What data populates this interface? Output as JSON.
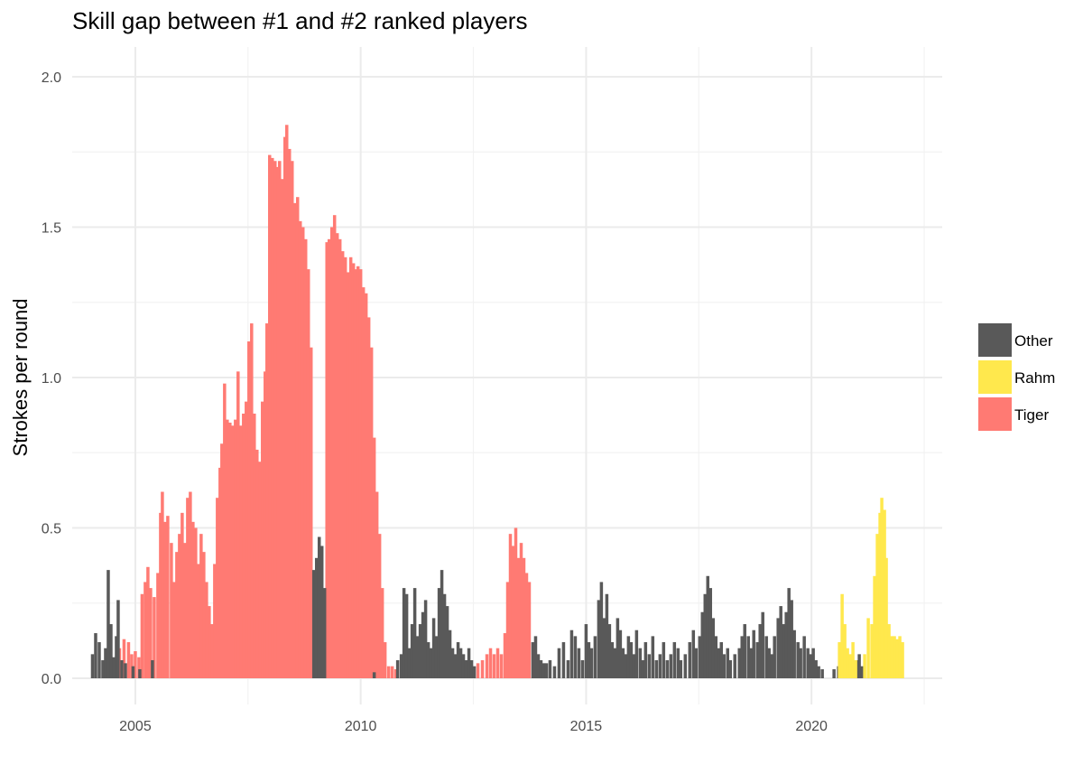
{
  "chart_data": {
    "type": "bar",
    "title": "Skill gap between #1 and #2 ranked players",
    "xlabel": "",
    "ylabel": "Strokes per round",
    "xlim": [
      2003.6,
      2022.9
    ],
    "ylim": [
      0,
      2.0
    ],
    "x_ticks": [
      2005,
      2010,
      2015,
      2020
    ],
    "x_tick_labels": [
      "2005",
      "2010",
      "2015",
      "2020"
    ],
    "y_ticks": [
      0,
      0.5,
      1.0,
      1.5,
      2.0
    ],
    "y_tick_labels": [
      "0.0",
      "0.5",
      "1.0",
      "1.5",
      "2.0"
    ],
    "grid": true,
    "legend_position": "right",
    "legend": [
      {
        "name": "Other",
        "color": "#595959"
      },
      {
        "name": "Rahm",
        "color": "#ffe84d"
      },
      {
        "name": "Tiger",
        "color": "#ff7a73"
      }
    ],
    "series": [
      {
        "name": "Tiger",
        "color": "#ff7a73",
        "points": [
          [
            2004.65,
            0.1
          ],
          [
            2004.75,
            0.13
          ],
          [
            2004.85,
            0.12
          ],
          [
            2004.92,
            0.08
          ],
          [
            2005.0,
            0.09
          ],
          [
            2005.08,
            0.07
          ],
          [
            2005.15,
            0.28
          ],
          [
            2005.22,
            0.32
          ],
          [
            2005.28,
            0.37
          ],
          [
            2005.34,
            0.3
          ],
          [
            2005.42,
            0.27
          ],
          [
            2005.5,
            0.35
          ],
          [
            2005.56,
            0.55
          ],
          [
            2005.6,
            0.62
          ],
          [
            2005.66,
            0.52
          ],
          [
            2005.72,
            0.54
          ],
          [
            2005.8,
            0.45
          ],
          [
            2005.86,
            0.32
          ],
          [
            2005.92,
            0.42
          ],
          [
            2005.98,
            0.48
          ],
          [
            2006.04,
            0.55
          ],
          [
            2006.1,
            0.45
          ],
          [
            2006.16,
            0.6
          ],
          [
            2006.22,
            0.62
          ],
          [
            2006.28,
            0.52
          ],
          [
            2006.34,
            0.5
          ],
          [
            2006.4,
            0.38
          ],
          [
            2006.46,
            0.48
          ],
          [
            2006.52,
            0.42
          ],
          [
            2006.58,
            0.32
          ],
          [
            2006.64,
            0.24
          ],
          [
            2006.7,
            0.18
          ],
          [
            2006.76,
            0.38
          ],
          [
            2006.82,
            0.6
          ],
          [
            2006.88,
            0.7
          ],
          [
            2006.92,
            0.78
          ],
          [
            2006.98,
            0.98
          ],
          [
            2007.04,
            0.86
          ],
          [
            2007.1,
            0.85
          ],
          [
            2007.16,
            0.84
          ],
          [
            2007.22,
            0.86
          ],
          [
            2007.28,
            1.02
          ],
          [
            2007.34,
            0.84
          ],
          [
            2007.4,
            0.88
          ],
          [
            2007.46,
            0.92
          ],
          [
            2007.52,
            1.12
          ],
          [
            2007.58,
            1.18
          ],
          [
            2007.64,
            0.88
          ],
          [
            2007.7,
            0.76
          ],
          [
            2007.76,
            0.72
          ],
          [
            2007.82,
            0.92
          ],
          [
            2007.88,
            1.02
          ],
          [
            2007.92,
            1.18
          ],
          [
            2007.98,
            1.74
          ],
          [
            2008.04,
            1.73
          ],
          [
            2008.1,
            1.72
          ],
          [
            2008.16,
            1.7
          ],
          [
            2008.2,
            1.72
          ],
          [
            2008.26,
            1.66
          ],
          [
            2008.32,
            1.8
          ],
          [
            2008.36,
            1.84
          ],
          [
            2008.42,
            1.76
          ],
          [
            2008.48,
            1.72
          ],
          [
            2008.54,
            1.58
          ],
          [
            2008.6,
            1.6
          ],
          [
            2008.66,
            1.52
          ],
          [
            2008.72,
            1.5
          ],
          [
            2008.78,
            1.46
          ],
          [
            2008.84,
            1.36
          ],
          [
            2008.9,
            1.1
          ],
          [
            2009.25,
            1.45
          ],
          [
            2009.3,
            1.46
          ],
          [
            2009.36,
            1.5
          ],
          [
            2009.42,
            1.54
          ],
          [
            2009.48,
            1.48
          ],
          [
            2009.54,
            1.46
          ],
          [
            2009.6,
            1.42
          ],
          [
            2009.66,
            1.4
          ],
          [
            2009.72,
            1.35
          ],
          [
            2009.78,
            1.4
          ],
          [
            2009.84,
            1.38
          ],
          [
            2009.88,
            1.36
          ],
          [
            2009.94,
            1.37
          ],
          [
            2010.0,
            1.36
          ],
          [
            2010.06,
            1.3
          ],
          [
            2010.12,
            1.28
          ],
          [
            2010.18,
            1.2
          ],
          [
            2010.24,
            1.1
          ],
          [
            2010.3,
            0.8
          ],
          [
            2010.36,
            0.62
          ],
          [
            2010.42,
            0.48
          ],
          [
            2010.48,
            0.3
          ],
          [
            2010.54,
            0.12
          ],
          [
            2010.62,
            0.04
          ],
          [
            2010.7,
            0.04
          ],
          [
            2010.78,
            0.03
          ],
          [
            2012.6,
            0.05
          ],
          [
            2012.7,
            0.06
          ],
          [
            2012.8,
            0.08
          ],
          [
            2012.88,
            0.1
          ],
          [
            2012.96,
            0.08
          ],
          [
            2013.04,
            0.1
          ],
          [
            2013.12,
            0.08
          ],
          [
            2013.2,
            0.15
          ],
          [
            2013.26,
            0.32
          ],
          [
            2013.32,
            0.48
          ],
          [
            2013.38,
            0.44
          ],
          [
            2013.44,
            0.5
          ],
          [
            2013.5,
            0.4
          ],
          [
            2013.56,
            0.45
          ],
          [
            2013.62,
            0.4
          ],
          [
            2013.68,
            0.35
          ],
          [
            2013.74,
            0.32
          ]
        ]
      },
      {
        "name": "Other",
        "color": "#595959",
        "points": [
          [
            2004.05,
            0.08
          ],
          [
            2004.12,
            0.15
          ],
          [
            2004.2,
            0.12
          ],
          [
            2004.28,
            0.06
          ],
          [
            2004.34,
            0.1
          ],
          [
            2004.4,
            0.36
          ],
          [
            2004.46,
            0.18
          ],
          [
            2004.52,
            0.07
          ],
          [
            2004.58,
            0.14
          ],
          [
            2004.62,
            0.26
          ],
          [
            2004.7,
            0.06
          ],
          [
            2004.78,
            0.05
          ],
          [
            2004.95,
            0.04
          ],
          [
            2005.1,
            0.03
          ],
          [
            2005.38,
            0.06
          ],
          [
            2008.96,
            0.36
          ],
          [
            2009.02,
            0.4
          ],
          [
            2009.08,
            0.47
          ],
          [
            2009.14,
            0.44
          ],
          [
            2009.2,
            0.3
          ],
          [
            2010.3,
            0.02
          ],
          [
            2010.82,
            0.06
          ],
          [
            2010.9,
            0.08
          ],
          [
            2010.96,
            0.3
          ],
          [
            2011.02,
            0.28
          ],
          [
            2011.08,
            0.1
          ],
          [
            2011.14,
            0.18
          ],
          [
            2011.2,
            0.3
          ],
          [
            2011.26,
            0.14
          ],
          [
            2011.32,
            0.18
          ],
          [
            2011.38,
            0.22
          ],
          [
            2011.44,
            0.26
          ],
          [
            2011.5,
            0.12
          ],
          [
            2011.56,
            0.1
          ],
          [
            2011.62,
            0.2
          ],
          [
            2011.68,
            0.14
          ],
          [
            2011.74,
            0.3
          ],
          [
            2011.8,
            0.36
          ],
          [
            2011.86,
            0.28
          ],
          [
            2011.92,
            0.24
          ],
          [
            2011.98,
            0.16
          ],
          [
            2012.04,
            0.1
          ],
          [
            2012.1,
            0.08
          ],
          [
            2012.16,
            0.12
          ],
          [
            2012.22,
            0.1
          ],
          [
            2012.28,
            0.08
          ],
          [
            2012.34,
            0.06
          ],
          [
            2012.4,
            0.1
          ],
          [
            2012.46,
            0.06
          ],
          [
            2012.52,
            0.04
          ],
          [
            2013.82,
            0.12
          ],
          [
            2013.88,
            0.14
          ],
          [
            2013.94,
            0.08
          ],
          [
            2014.0,
            0.06
          ],
          [
            2014.06,
            0.05
          ],
          [
            2014.12,
            0.05
          ],
          [
            2014.2,
            0.06
          ],
          [
            2014.3,
            0.04
          ],
          [
            2014.4,
            0.1
          ],
          [
            2014.5,
            0.12
          ],
          [
            2014.6,
            0.06
          ],
          [
            2014.68,
            0.16
          ],
          [
            2014.76,
            0.14
          ],
          [
            2014.84,
            0.1
          ],
          [
            2014.92,
            0.06
          ],
          [
            2015.0,
            0.18
          ],
          [
            2015.06,
            0.12
          ],
          [
            2015.12,
            0.1
          ],
          [
            2015.2,
            0.14
          ],
          [
            2015.28,
            0.26
          ],
          [
            2015.34,
            0.32
          ],
          [
            2015.4,
            0.2
          ],
          [
            2015.46,
            0.28
          ],
          [
            2015.52,
            0.18
          ],
          [
            2015.58,
            0.12
          ],
          [
            2015.64,
            0.1
          ],
          [
            2015.7,
            0.2
          ],
          [
            2015.76,
            0.16
          ],
          [
            2015.82,
            0.1
          ],
          [
            2015.88,
            0.08
          ],
          [
            2015.94,
            0.14
          ],
          [
            2016.0,
            0.12
          ],
          [
            2016.06,
            0.08
          ],
          [
            2016.12,
            0.16
          ],
          [
            2016.2,
            0.1
          ],
          [
            2016.26,
            0.06
          ],
          [
            2016.32,
            0.12
          ],
          [
            2016.4,
            0.08
          ],
          [
            2016.48,
            0.14
          ],
          [
            2016.56,
            0.06
          ],
          [
            2016.64,
            0.08
          ],
          [
            2016.72,
            0.12
          ],
          [
            2016.8,
            0.06
          ],
          [
            2016.88,
            0.08
          ],
          [
            2016.96,
            0.12
          ],
          [
            2017.04,
            0.1
          ],
          [
            2017.1,
            0.06
          ],
          [
            2017.2,
            0.08
          ],
          [
            2017.3,
            0.12
          ],
          [
            2017.38,
            0.16
          ],
          [
            2017.44,
            0.1
          ],
          [
            2017.52,
            0.14
          ],
          [
            2017.58,
            0.22
          ],
          [
            2017.64,
            0.28
          ],
          [
            2017.7,
            0.34
          ],
          [
            2017.76,
            0.3
          ],
          [
            2017.82,
            0.2
          ],
          [
            2017.88,
            0.14
          ],
          [
            2017.94,
            0.1
          ],
          [
            2018.0,
            0.12
          ],
          [
            2018.06,
            0.08
          ],
          [
            2018.14,
            0.1
          ],
          [
            2018.2,
            0.06
          ],
          [
            2018.3,
            0.08
          ],
          [
            2018.4,
            0.1
          ],
          [
            2018.46,
            0.14
          ],
          [
            2018.52,
            0.18
          ],
          [
            2018.6,
            0.14
          ],
          [
            2018.66,
            0.1
          ],
          [
            2018.72,
            0.16
          ],
          [
            2018.8,
            0.12
          ],
          [
            2018.86,
            0.18
          ],
          [
            2018.92,
            0.22
          ],
          [
            2019.0,
            0.14
          ],
          [
            2019.06,
            0.1
          ],
          [
            2019.12,
            0.08
          ],
          [
            2019.18,
            0.14
          ],
          [
            2019.26,
            0.2
          ],
          [
            2019.32,
            0.24
          ],
          [
            2019.38,
            0.18
          ],
          [
            2019.44,
            0.22
          ],
          [
            2019.5,
            0.3
          ],
          [
            2019.56,
            0.26
          ],
          [
            2019.62,
            0.16
          ],
          [
            2019.7,
            0.12
          ],
          [
            2019.76,
            0.1
          ],
          [
            2019.84,
            0.14
          ],
          [
            2019.92,
            0.1
          ],
          [
            2019.98,
            0.08
          ],
          [
            2020.04,
            0.1
          ],
          [
            2020.1,
            0.06
          ],
          [
            2020.16,
            0.04
          ],
          [
            2020.24,
            0.03
          ],
          [
            2020.5,
            0.03
          ],
          [
            2020.6,
            0.04
          ],
          [
            2020.7,
            0.03
          ],
          [
            2021.0,
            0.06
          ],
          [
            2021.06,
            0.08
          ],
          [
            2021.12,
            0.04
          ]
        ]
      },
      {
        "name": "Rahm",
        "color": "#ffe84d",
        "points": [
          [
            2020.62,
            0.12
          ],
          [
            2020.68,
            0.28
          ],
          [
            2020.74,
            0.18
          ],
          [
            2020.8,
            0.1
          ],
          [
            2020.86,
            0.08
          ],
          [
            2020.92,
            0.12
          ],
          [
            2020.98,
            0.06
          ],
          [
            2021.18,
            0.08
          ],
          [
            2021.26,
            0.2
          ],
          [
            2021.34,
            0.18
          ],
          [
            2021.4,
            0.34
          ],
          [
            2021.46,
            0.48
          ],
          [
            2021.52,
            0.55
          ],
          [
            2021.56,
            0.6
          ],
          [
            2021.62,
            0.56
          ],
          [
            2021.66,
            0.4
          ],
          [
            2021.72,
            0.18
          ],
          [
            2021.78,
            0.14
          ],
          [
            2021.84,
            0.14
          ],
          [
            2021.9,
            0.13
          ],
          [
            2021.96,
            0.14
          ],
          [
            2022.02,
            0.12
          ]
        ]
      }
    ]
  }
}
